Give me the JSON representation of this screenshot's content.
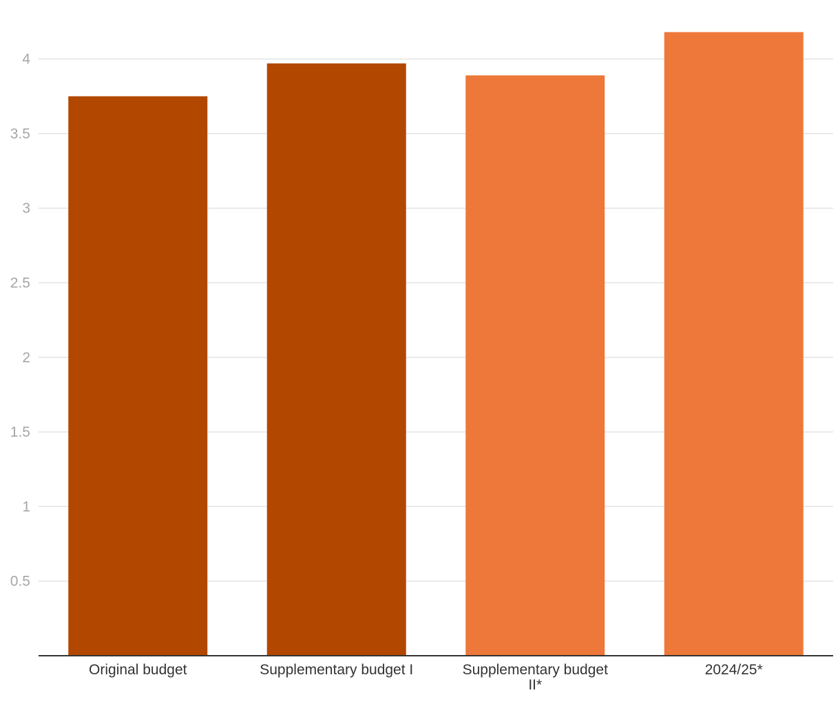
{
  "chart_data": {
    "type": "bar",
    "title": "",
    "xlabel": "",
    "ylabel": "",
    "ylim": [
      0,
      4.2
    ],
    "yticks": [
      0.5,
      1,
      1.5,
      2,
      2.5,
      3,
      3.5,
      4
    ],
    "ytick_labels": [
      "0.5",
      "1",
      "1.5",
      "2",
      "2.5",
      "3",
      "3.5",
      "4"
    ],
    "grid": true,
    "legend": "none",
    "categories": [
      {
        "lines": [
          "Original budget"
        ]
      },
      {
        "lines": [
          "Supplementary budget I"
        ]
      },
      {
        "lines": [
          "Supplementary budget",
          "II*"
        ]
      },
      {
        "lines": [
          "2024/25*"
        ]
      }
    ],
    "values": [
      3.75,
      3.97,
      3.89,
      4.18
    ],
    "bar_colors": [
      "#b24700",
      "#b24700",
      "#ed7839",
      "#ed7839"
    ]
  }
}
